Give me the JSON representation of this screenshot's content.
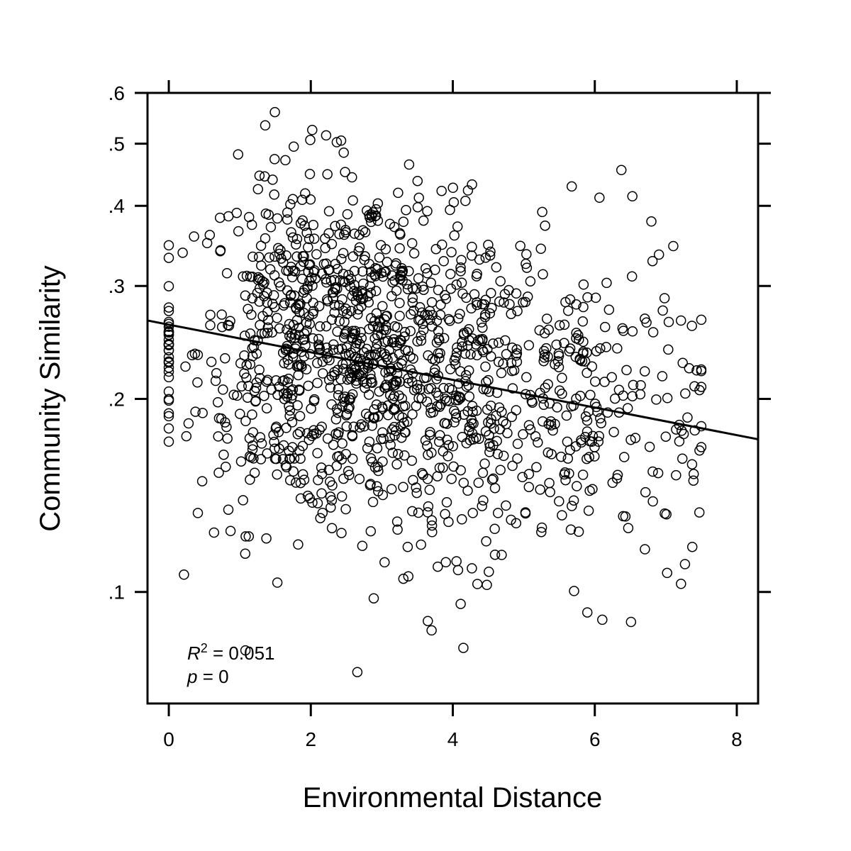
{
  "chart_data": {
    "type": "scatter",
    "xlabel": "Environmental Distance",
    "ylabel": "Community Similarity",
    "y_scale": "log",
    "xlim": [
      -0.3,
      8.3
    ],
    "ylim": [
      0.067,
      0.6
    ],
    "x_ticks": [
      {
        "value": 0,
        "label": "0"
      },
      {
        "value": 2,
        "label": "2"
      },
      {
        "value": 4,
        "label": "4"
      },
      {
        "value": 6,
        "label": "6"
      },
      {
        "value": 8,
        "label": "8"
      }
    ],
    "y_ticks": [
      {
        "value": 0.1,
        "label": ".1"
      },
      {
        "value": 0.2,
        "label": ".2"
      },
      {
        "value": 0.3,
        "label": ".3"
      },
      {
        "value": 0.4,
        "label": ".4"
      },
      {
        "value": 0.5,
        "label": ".5"
      },
      {
        "value": 0.6,
        "label": ".6"
      }
    ],
    "grid": false,
    "annotation": {
      "r2_label": "R",
      "r2_superscript": "2",
      "r2_value": " = 0.051",
      "p_label": "p",
      "p_value": " = 0"
    },
    "trend_line": {
      "x": [
        -0.3,
        8.3
      ],
      "y": [
        0.265,
        0.173
      ]
    },
    "generated_points": {
      "count": 1400,
      "note_visible": false,
      "clusters": [
        {
          "x_center": 0,
          "x_spread": 0.02,
          "y_center": 0.235,
          "y_spread": 0.12,
          "count": 30
        },
        {
          "x_center": 1.8,
          "x_spread": 0.7,
          "y_center": 0.24,
          "y_spread": 0.32,
          "count": 480
        },
        {
          "x_center": 3.0,
          "x_spread": 0.6,
          "y_center": 0.23,
          "y_spread": 0.3,
          "count": 420
        },
        {
          "x_center": 4.4,
          "x_spread": 0.55,
          "y_center": 0.21,
          "y_spread": 0.3,
          "count": 260
        },
        {
          "x_center": 5.9,
          "x_spread": 0.55,
          "y_center": 0.19,
          "y_spread": 0.3,
          "count": 170
        },
        {
          "x_center": 7.2,
          "x_spread": 0.2,
          "y_center": 0.18,
          "y_spread": 0.25,
          "count": 40
        }
      ]
    }
  }
}
